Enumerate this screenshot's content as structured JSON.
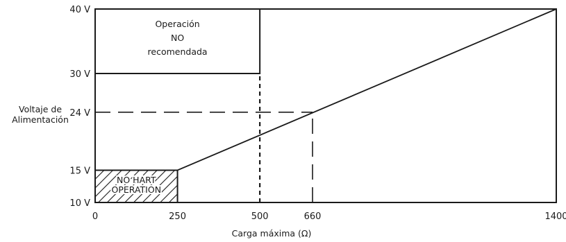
{
  "chart_data": {
    "type": "line",
    "title": "",
    "xlabel": "Carga máxima (Ω)",
    "ylabel_lines": [
      "Voltaje de",
      "Alimentación"
    ],
    "xlim": [
      0,
      1400
    ],
    "ylim": [
      10,
      40
    ],
    "x_ticks": [
      0,
      250,
      500,
      660,
      1400
    ],
    "y_ticks": [
      {
        "value": 10,
        "label": "10 V"
      },
      {
        "value": 15,
        "label": "15 V"
      },
      {
        "value": 24,
        "label": "24 V"
      },
      {
        "value": 30,
        "label": "30 V"
      },
      {
        "value": 40,
        "label": "40 V"
      }
    ],
    "series": [
      {
        "x": [
          0,
          250,
          1400
        ],
        "y": [
          15,
          15,
          40
        ]
      }
    ],
    "regions": {
      "not_recommended": {
        "x": [
          0,
          500
        ],
        "y": [
          30,
          40
        ],
        "lines": [
          "Operación",
          "NO",
          "recomendada"
        ]
      },
      "no_hart": {
        "x": [
          0,
          250
        ],
        "y": [
          10,
          15
        ],
        "lines": [
          "NO HART",
          "OPERATION"
        ]
      }
    },
    "guides": [
      {
        "type": "vertical",
        "x": 500,
        "y": [
          10,
          30
        ],
        "style": "short-dash"
      },
      {
        "type": "horizontal",
        "y": 24,
        "x": [
          0,
          660
        ],
        "style": "long-dash"
      },
      {
        "type": "vertical",
        "x": 660,
        "y": [
          10,
          24
        ],
        "style": "long-dash"
      }
    ]
  }
}
